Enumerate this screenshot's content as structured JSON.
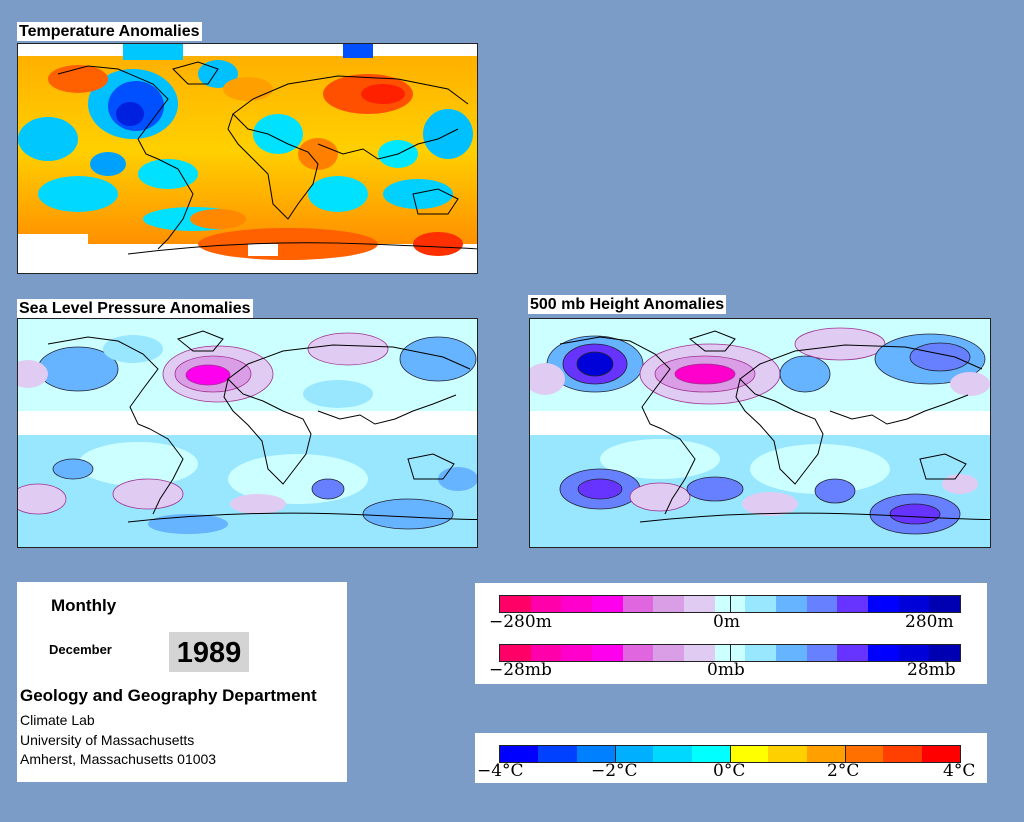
{
  "titles": {
    "temperature": "Temperature Anomalies",
    "slp": "Sea Level Pressure Anomalies",
    "height": "500 mb Height Anomalies"
  },
  "info": {
    "period": "Monthly",
    "month": "December",
    "year": "1989",
    "department": "Geology and Geography Department",
    "lab": "Climate Lab",
    "university": "University of Massachusetts",
    "address": "Amherst, Massachusetts 01003"
  },
  "legend_height": {
    "left": "−280m",
    "mid": "0m",
    "right": "280m"
  },
  "legend_pressure": {
    "left": "−28mb",
    "mid": "0mb",
    "right": "28mb"
  },
  "legend_temperature": {
    "t1": "−4°C",
    "t2": "−2°C",
    "t3": "0°C",
    "t4": "2°C",
    "t5": "4°C"
  },
  "colors": {
    "background": "#7a9cc6",
    "anomaly_scale": [
      "#ff0066",
      "#ff00aa",
      "#ff00cc",
      "#ff00ee",
      "#e066e0",
      "#d99ee6",
      "#e0ccf2",
      "#ccffff",
      "#99e6ff",
      "#66b3ff",
      "#6680ff",
      "#6633ff",
      "#0000ff",
      "#0000d9",
      "#0000b3"
    ],
    "temperature_scale": [
      "#0000ff",
      "#0040ff",
      "#0080ff",
      "#00b0ff",
      "#00d8ff",
      "#00ffff",
      "#ffff00",
      "#ffd000",
      "#ffa000",
      "#ff7000",
      "#ff4000",
      "#ff0000"
    ]
  }
}
